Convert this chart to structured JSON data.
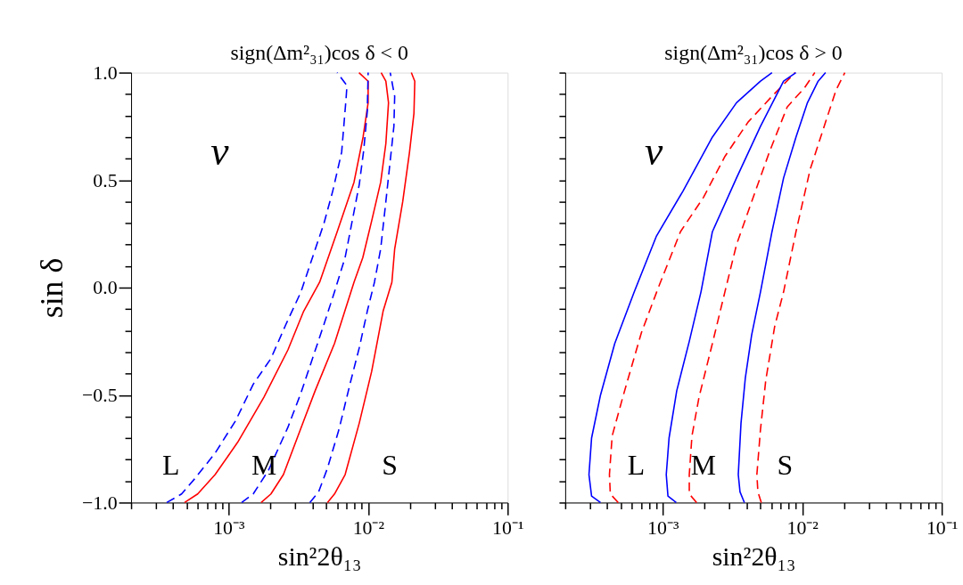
{
  "chart_data": [
    {
      "type": "line",
      "title": "sign(Δm²₃₁)cos δ < 0",
      "xlabel": "sin²2θ₁₃",
      "ylabel": "sin δ",
      "log": "x",
      "grid": false,
      "marker": "none",
      "xlim": [
        0.0002,
        0.1
      ],
      "ylim": [
        -1.0,
        1.0
      ],
      "xticks": [
        {
          "value": 0.0002,
          "label": null
        },
        {
          "value": 0.0003,
          "label": null
        },
        {
          "value": 0.0004,
          "label": null
        },
        {
          "value": 0.0005,
          "label": null
        },
        {
          "value": 0.0006,
          "label": null
        },
        {
          "value": 0.0007,
          "label": null
        },
        {
          "value": 0.0008,
          "label": null
        },
        {
          "value": 0.0009,
          "label": null
        },
        {
          "value": 0.001,
          "label": "10⁻³"
        },
        {
          "value": 0.002,
          "label": null
        },
        {
          "value": 0.003,
          "label": null
        },
        {
          "value": 0.004,
          "label": null
        },
        {
          "value": 0.005,
          "label": null
        },
        {
          "value": 0.006,
          "label": null
        },
        {
          "value": 0.007,
          "label": null
        },
        {
          "value": 0.008,
          "label": null
        },
        {
          "value": 0.009,
          "label": null
        },
        {
          "value": 0.01,
          "label": "10⁻²"
        },
        {
          "value": 0.02,
          "label": null
        },
        {
          "value": 0.03,
          "label": null
        },
        {
          "value": 0.04,
          "label": null
        },
        {
          "value": 0.05,
          "label": null
        },
        {
          "value": 0.06,
          "label": null
        },
        {
          "value": 0.07,
          "label": null
        },
        {
          "value": 0.08,
          "label": null
        },
        {
          "value": 0.09,
          "label": null
        },
        {
          "value": 0.1,
          "label": "10⁻¹"
        }
      ],
      "yticks": [
        {
          "value": -1.0,
          "label": "−1.0"
        },
        {
          "value": -0.9,
          "label": null
        },
        {
          "value": -0.8,
          "label": null
        },
        {
          "value": -0.7,
          "label": null
        },
        {
          "value": -0.6,
          "label": null
        },
        {
          "value": -0.5,
          "label": "−0.5"
        },
        {
          "value": -0.4,
          "label": null
        },
        {
          "value": -0.3,
          "label": null
        },
        {
          "value": -0.2,
          "label": null
        },
        {
          "value": -0.1,
          "label": null
        },
        {
          "value": 0.0,
          "label": "0.0"
        },
        {
          "value": 0.1,
          "label": null
        },
        {
          "value": 0.2,
          "label": null
        },
        {
          "value": 0.3,
          "label": null
        },
        {
          "value": 0.4,
          "label": null
        },
        {
          "value": 0.5,
          "label": "0.5"
        },
        {
          "value": 0.6,
          "label": null
        },
        {
          "value": 0.7,
          "label": null
        },
        {
          "value": 0.8,
          "label": null
        },
        {
          "value": 0.9,
          "label": null
        },
        {
          "value": 1.0,
          "label": "1.0"
        }
      ],
      "series": [
        {
          "color": "#0000ff",
          "line_style": "dashed",
          "x": [
            0.00036,
            0.00046,
            0.00057,
            0.0008,
            0.00112,
            0.0015,
            0.00201,
            0.00258,
            0.0033,
            0.00399,
            0.00483,
            0.00558,
            0.00646,
            0.00695,
            0.00705,
            0.006
          ],
          "values": [
            -1.0,
            -0.96,
            -0.89,
            -0.77,
            -0.62,
            -0.45,
            -0.33,
            -0.17,
            -0.02,
            0.14,
            0.3,
            0.45,
            0.63,
            0.88,
            0.94,
            1.0
          ]
        },
        {
          "color": "#ff0000",
          "line_style": "solid",
          "x": [
            0.000483,
            0.0006,
            0.0008,
            0.00116,
            0.00179,
            0.00266,
            0.00345,
            0.00449,
            0.006,
            0.00792,
            0.0092,
            0.01,
            0.01,
            0.0086
          ],
          "values": [
            -1.0,
            -0.96,
            -0.87,
            -0.72,
            -0.51,
            -0.29,
            -0.11,
            0.025,
            0.26,
            0.49,
            0.7,
            0.86,
            0.96,
            1.0
          ]
        },
        {
          "color": "#0000ff",
          "line_style": "dashed",
          "x": [
            0.00124,
            0.0015,
            0.00193,
            0.00266,
            0.0033,
            0.00399,
            0.00483,
            0.00574,
            0.00684,
            0.00769,
            0.00864,
            0.0093,
            0.00986,
            0.01
          ],
          "values": [
            -1.0,
            -0.96,
            -0.85,
            -0.65,
            -0.49,
            -0.33,
            -0.17,
            -0.02,
            0.14,
            0.31,
            0.48,
            0.64,
            0.82,
            1.0
          ]
        },
        {
          "color": "#ff0000",
          "line_style": "solid",
          "x": [
            0.00171,
            0.00201,
            0.00247,
            0.00345,
            0.00417,
            0.00574,
            0.00792,
            0.00916,
            0.0106,
            0.0123,
            0.0134,
            0.014,
            0.0134,
            0.0124
          ],
          "values": [
            -1.0,
            -0.96,
            -0.87,
            -0.62,
            -0.48,
            -0.26,
            0.025,
            0.14,
            0.31,
            0.49,
            0.67,
            0.86,
            0.96,
            1.0
          ]
        },
        {
          "color": "#0000ff",
          "line_style": "dashed",
          "x": [
            0.00382,
            0.00442,
            0.00511,
            0.00618,
            0.00747,
            0.00864,
            0.00986,
            0.0111,
            0.0123,
            0.0134,
            0.0144,
            0.0153,
            0.0155,
            0.0144
          ],
          "values": [
            -1.0,
            -0.95,
            -0.84,
            -0.66,
            -0.44,
            -0.28,
            -0.11,
            0.025,
            0.18,
            0.4,
            0.59,
            0.75,
            0.89,
            1.0
          ]
        },
        {
          "color": "#ff0000",
          "line_style": "solid",
          "x": [
            0.00511,
            0.00574,
            0.00684,
            0.00864,
            0.0106,
            0.0128,
            0.0148,
            0.0155,
            0.0177,
            0.0198,
            0.0213,
            0.0216,
            0.0204
          ],
          "values": [
            -1.0,
            -0.96,
            -0.87,
            -0.63,
            -0.39,
            -0.11,
            0.025,
            0.18,
            0.4,
            0.63,
            0.81,
            0.96,
            1.0
          ]
        }
      ],
      "annotations": [
        "ν",
        "L",
        "M",
        "S"
      ]
    },
    {
      "type": "line",
      "title": "sign(Δm²₃₁)cos δ > 0",
      "xlabel": "sin²2θ₁₃",
      "log": "x",
      "grid": false,
      "marker": "none",
      "tick_labels": "x",
      "xlim": [
        0.0002,
        0.1
      ],
      "ylim": [
        -1.0,
        1.0
      ],
      "xticks": [
        {
          "value": 0.0002,
          "label": null
        },
        {
          "value": 0.0003,
          "label": null
        },
        {
          "value": 0.0004,
          "label": null
        },
        {
          "value": 0.0005,
          "label": null
        },
        {
          "value": 0.0006,
          "label": null
        },
        {
          "value": 0.0007,
          "label": null
        },
        {
          "value": 0.0008,
          "label": null
        },
        {
          "value": 0.0009,
          "label": null
        },
        {
          "value": 0.001,
          "label": "10⁻³"
        },
        {
          "value": 0.002,
          "label": null
        },
        {
          "value": 0.003,
          "label": null
        },
        {
          "value": 0.004,
          "label": null
        },
        {
          "value": 0.005,
          "label": null
        },
        {
          "value": 0.006,
          "label": null
        },
        {
          "value": 0.007,
          "label": null
        },
        {
          "value": 0.008,
          "label": null
        },
        {
          "value": 0.009,
          "label": null
        },
        {
          "value": 0.01,
          "label": "10⁻²"
        },
        {
          "value": 0.02,
          "label": null
        },
        {
          "value": 0.03,
          "label": null
        },
        {
          "value": 0.04,
          "label": null
        },
        {
          "value": 0.05,
          "label": null
        },
        {
          "value": 0.06,
          "label": null
        },
        {
          "value": 0.07,
          "label": null
        },
        {
          "value": 0.08,
          "label": null
        },
        {
          "value": 0.09,
          "label": null
        },
        {
          "value": 0.1,
          "label": "10⁻¹"
        }
      ],
      "yticks": [
        {
          "value": -1.0,
          "label": null
        },
        {
          "value": -0.9,
          "label": null
        },
        {
          "value": -0.8,
          "label": null
        },
        {
          "value": -0.7,
          "label": null
        },
        {
          "value": -0.6,
          "label": null
        },
        {
          "value": -0.5,
          "label": null
        },
        {
          "value": -0.4,
          "label": null
        },
        {
          "value": -0.3,
          "label": null
        },
        {
          "value": -0.2,
          "label": null
        },
        {
          "value": -0.1,
          "label": null
        },
        {
          "value": 0.0,
          "label": null
        },
        {
          "value": 0.1,
          "label": null
        },
        {
          "value": 0.2,
          "label": null
        },
        {
          "value": 0.3,
          "label": null
        },
        {
          "value": 0.4,
          "label": null
        },
        {
          "value": 0.5,
          "label": null
        },
        {
          "value": 0.6,
          "label": null
        },
        {
          "value": 0.7,
          "label": null
        },
        {
          "value": 0.8,
          "label": null
        },
        {
          "value": 0.9,
          "label": null
        },
        {
          "value": 1.0,
          "label": null
        }
      ],
      "series": [
        {
          "color": "#0000ff",
          "line_style": "solid",
          "x": [
            0.000358,
            0.000309,
            0.000296,
            0.000309,
            0.000358,
            0.000453,
            0.000625,
            0.000902,
            0.0014,
            0.00227,
            0.00338,
            0.00502,
            0.00607
          ],
          "values": [
            -1.0,
            -0.97,
            -0.87,
            -0.7,
            -0.5,
            -0.26,
            -0.02,
            0.24,
            0.45,
            0.7,
            0.86,
            0.96,
            1.0
          ]
        },
        {
          "color": "#ff0000",
          "line_style": "dashed",
          "x": [
            0.00048,
            0.000421,
            0.000415,
            0.000434,
            0.000517,
            0.000703,
            0.00093,
            0.00134,
            0.00196,
            0.00279,
            0.00409,
            0.00607,
            0.00889
          ],
          "values": [
            -1.0,
            -0.96,
            -0.87,
            -0.69,
            -0.51,
            -0.21,
            0.0,
            0.26,
            0.42,
            0.61,
            0.77,
            0.89,
            1.0
          ]
        },
        {
          "color": "#0000ff",
          "line_style": "solid",
          "x": [
            0.00125,
            0.00109,
            0.00106,
            0.00111,
            0.00126,
            0.00155,
            0.00188,
            0.00227,
            0.00338,
            0.00502,
            0.00735,
            0.009
          ],
          "values": [
            -1.0,
            -0.97,
            -0.87,
            -0.7,
            -0.48,
            -0.25,
            -0.02,
            0.26,
            0.51,
            0.75,
            0.96,
            1.0
          ]
        },
        {
          "color": "#ff0000",
          "line_style": "dashed",
          "x": [
            0.00175,
            0.00155,
            0.00155,
            0.00162,
            0.00182,
            0.00227,
            0.00279,
            0.00338,
            0.00434,
            0.00581,
            0.0078,
            0.0104,
            0.0123
          ],
          "values": [
            -1.0,
            -0.96,
            -0.87,
            -0.69,
            -0.51,
            -0.26,
            -0.02,
            0.2,
            0.4,
            0.63,
            0.84,
            0.93,
            1.0
          ]
        },
        {
          "color": "#0000ff",
          "line_style": "solid",
          "x": [
            0.00385,
            0.00358,
            0.00348,
            0.00364,
            0.00391,
            0.00434,
            0.00502,
            0.00607,
            0.00735,
            0.00902,
            0.0109,
            0.013,
            0.0147
          ],
          "values": [
            -1.0,
            -0.95,
            -0.87,
            -0.63,
            -0.42,
            -0.22,
            -0.02,
            0.26,
            0.51,
            0.7,
            0.86,
            0.96,
            1.0
          ]
        },
        {
          "color": "#ff0000",
          "line_style": "dashed",
          "x": [
            0.00509,
            0.00481,
            0.00473,
            0.00502,
            0.00548,
            0.00635,
            0.00735,
            0.00902,
            0.0114,
            0.0147,
            0.0175,
            0.0202
          ],
          "values": [
            -1.0,
            -0.95,
            -0.87,
            -0.66,
            -0.43,
            -0.18,
            -0.02,
            0.26,
            0.55,
            0.77,
            0.92,
            1.0
          ]
        }
      ],
      "annotations": [
        "ν",
        "L",
        "M",
        "S"
      ]
    }
  ]
}
